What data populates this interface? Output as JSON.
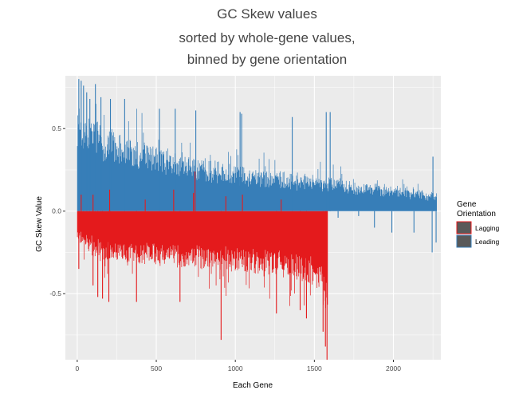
{
  "chart_data": {
    "type": "bar",
    "title_lines": [
      "GC Skew values",
      "sorted by whole-gene values,",
      "binned by gene orientation"
    ],
    "xlabel": "Each Gene",
    "ylabel": "GC Skew Value",
    "xlim": [
      -75,
      2300
    ],
    "ylim": [
      -0.9,
      0.82
    ],
    "x_ticks": [
      0,
      500,
      1000,
      1500,
      2000
    ],
    "x_tick_labels": [
      "0",
      "500",
      "1000",
      "1500",
      "2000"
    ],
    "y_ticks": [
      -0.5,
      0.0,
      0.5
    ],
    "y_tick_labels": [
      "-0.5",
      "0.0",
      "0.5"
    ],
    "grid": true,
    "panel_background": "#ebebeb",
    "grid_color": "#ffffff",
    "legend": {
      "title_lines": [
        "Gene",
        "Orientation"
      ],
      "placement": "right",
      "entries": [
        {
          "label": "Lagging",
          "color": "#e41a1c"
        },
        {
          "label": "Leading",
          "color": "#377eb8"
        }
      ]
    },
    "series": [
      {
        "name": "Leading",
        "color": "#377eb8",
        "x_range": [
          1,
          2275
        ],
        "profile": [
          [
            0,
            0.54
          ],
          [
            20,
            0.5
          ],
          [
            100,
            0.45
          ],
          [
            200,
            0.4
          ],
          [
            400,
            0.34
          ],
          [
            600,
            0.29
          ],
          [
            800,
            0.25
          ],
          [
            1000,
            0.22
          ],
          [
            1200,
            0.2
          ],
          [
            1500,
            0.17
          ],
          [
            1800,
            0.14
          ],
          [
            2000,
            0.12
          ],
          [
            2200,
            0.1
          ],
          [
            2275,
            0.08
          ]
        ],
        "spikes_up": [
          [
            10,
            0.8
          ],
          [
            25,
            0.79
          ],
          [
            40,
            0.76
          ],
          [
            60,
            0.72
          ],
          [
            80,
            0.68
          ],
          [
            115,
            0.77
          ],
          [
            150,
            0.69
          ],
          [
            210,
            0.68
          ],
          [
            300,
            0.68
          ],
          [
            520,
            0.62
          ],
          [
            620,
            0.62
          ],
          [
            750,
            0.61
          ],
          [
            1030,
            0.6
          ],
          [
            1040,
            0.59
          ],
          [
            1360,
            0.57
          ],
          [
            1575,
            0.6
          ],
          [
            1600,
            0.6
          ],
          [
            2250,
            0.33
          ]
        ],
        "spikes_down": [
          [
            1580,
            -0.03
          ],
          [
            1650,
            -0.04
          ],
          [
            1780,
            -0.03
          ],
          [
            1880,
            -0.1
          ],
          [
            1990,
            -0.13
          ],
          [
            2130,
            -0.13
          ],
          [
            2245,
            -0.25
          ],
          [
            2270,
            -0.19
          ]
        ]
      },
      {
        "name": "Lagging",
        "color": "#e41a1c",
        "x_range": [
          1,
          1585
        ],
        "profile": [
          [
            0,
            -0.15
          ],
          [
            100,
            -0.22
          ],
          [
            300,
            -0.25
          ],
          [
            600,
            -0.27
          ],
          [
            900,
            -0.29
          ],
          [
            1200,
            -0.31
          ],
          [
            1400,
            -0.33
          ],
          [
            1500,
            -0.36
          ],
          [
            1550,
            -0.45
          ],
          [
            1585,
            -0.55
          ]
        ],
        "spikes_down": [
          [
            10,
            -0.35
          ],
          [
            100,
            -0.45
          ],
          [
            130,
            -0.52
          ],
          [
            160,
            -0.53
          ],
          [
            200,
            -0.55
          ],
          [
            375,
            -0.55
          ],
          [
            650,
            -0.55
          ],
          [
            910,
            -0.78
          ],
          [
            1260,
            -0.62
          ],
          [
            1410,
            -0.6
          ],
          [
            1450,
            -0.65
          ],
          [
            1555,
            -0.73
          ],
          [
            1570,
            -0.82
          ],
          [
            1580,
            -0.9
          ]
        ],
        "spikes_up": [
          [
            25,
            0.1
          ],
          [
            100,
            0.1
          ],
          [
            205,
            0.13
          ],
          [
            430,
            0.07
          ],
          [
            610,
            0.13
          ],
          [
            735,
            0.11
          ],
          [
            745,
            0.24
          ],
          [
            940,
            0.09
          ],
          [
            1045,
            0.1
          ],
          [
            1290,
            0.07
          ]
        ]
      }
    ]
  }
}
